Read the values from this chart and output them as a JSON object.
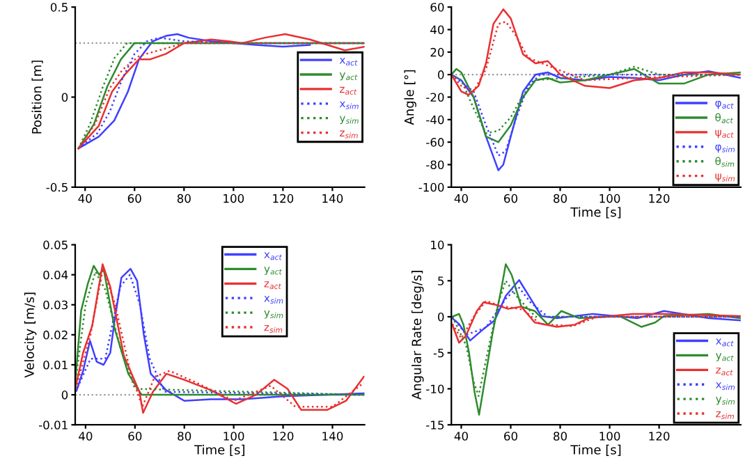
{
  "chart_data": [
    {
      "type": "line",
      "ylabel": "Position [m]",
      "xlim": [
        36,
        153
      ],
      "ylim": [
        -0.5,
        0.5
      ],
      "xticks": [
        40,
        60,
        80,
        100,
        120,
        140
      ],
      "yticks": [
        -0.5,
        0,
        0.5
      ],
      "grid": false,
      "legend": "right",
      "marker": "none",
      "ref_lines": [
        {
          "axis": "y",
          "value": 0.3,
          "color": "#999999",
          "line_style": "dotted"
        }
      ],
      "series": [
        {
          "name": "x$_{act}$",
          "color": "#3f3fff",
          "line_style": "solid",
          "x": [
            37.3,
            45.5,
            51.8,
            57.3,
            61.8,
            67.3,
            72.7,
            77.3,
            81.8,
            90.9,
            109,
            120,
            130.9
          ],
          "values": [
            -0.285,
            -0.22,
            -0.13,
            0.03,
            0.21,
            0.31,
            0.34,
            0.35,
            0.33,
            0.31,
            0.29,
            0.28,
            0.29
          ]
        },
        {
          "name": "y$_{act}$",
          "color": "#2e8b2e",
          "line_style": "solid",
          "x": [
            37.3,
            43.6,
            49,
            54.5,
            60,
            72.7,
            145,
            153
          ],
          "values": [
            -0.285,
            -0.15,
            0.06,
            0.21,
            0.3,
            0.3,
            0.3,
            0.3
          ]
        },
        {
          "name": "z$_{act}$",
          "color": "#e83030",
          "line_style": "solid",
          "x": [
            37.3,
            45.5,
            50.9,
            56.4,
            61.8,
            66.4,
            72.7,
            80,
            90.9,
            98,
            103.6,
            112.7,
            120.9,
            130.9,
            145,
            153
          ],
          "values": [
            -0.285,
            -0.16,
            0.03,
            0.13,
            0.21,
            0.21,
            0.24,
            0.3,
            0.32,
            0.31,
            0.3,
            0.33,
            0.35,
            0.32,
            0.26,
            0.28
          ]
        },
        {
          "name": "x$_{sim}$",
          "color": "#3f3fff",
          "line_style": "dotted",
          "x": [
            37.3,
            45,
            50,
            55,
            60,
            65,
            70,
            80,
            100,
            120,
            153
          ],
          "values": [
            -0.285,
            -0.2,
            -0.08,
            0.1,
            0.24,
            0.31,
            0.33,
            0.31,
            0.3,
            0.3,
            0.3
          ]
        },
        {
          "name": "y$_{sim}$",
          "color": "#2e8b2e",
          "line_style": "dotted",
          "x": [
            37.3,
            42,
            47,
            52,
            57,
            153
          ],
          "values": [
            -0.285,
            -0.15,
            0.05,
            0.22,
            0.3,
            0.3
          ]
        },
        {
          "name": "z$_{sim}$",
          "color": "#e83030",
          "line_style": "dotted",
          "x": [
            37.3,
            44,
            50,
            55,
            62,
            70,
            80,
            153
          ],
          "values": [
            -0.285,
            -0.15,
            0.05,
            0.15,
            0.23,
            0.26,
            0.3,
            0.3
          ]
        }
      ]
    },
    {
      "type": "line",
      "xlabel": "Time [s]",
      "ylabel": "Angle [°]",
      "xlim": [
        36,
        153
      ],
      "ylim": [
        -100,
        60
      ],
      "xticks": [
        40,
        60,
        80,
        100,
        120
      ],
      "yticks": [
        -100,
        -80,
        -60,
        -40,
        -20,
        0,
        20,
        40,
        60
      ],
      "grid": false,
      "legend": "lower right",
      "marker": "none",
      "ref_lines": [
        {
          "axis": "y",
          "value": 0,
          "color": "#999999",
          "line_style": "dotted"
        }
      ],
      "series": [
        {
          "name": "φ$_{act}$",
          "color": "#3f3fff",
          "line_style": "solid",
          "x": [
            36,
            40,
            45,
            50,
            55,
            57,
            60,
            65,
            70,
            75,
            80,
            90,
            100,
            110,
            120,
            130,
            140,
            153
          ],
          "values": [
            0,
            -5,
            -20,
            -55,
            -85,
            -80,
            -55,
            -15,
            0,
            2,
            -3,
            -5,
            -2,
            -3,
            -5,
            0,
            3,
            -3
          ]
        },
        {
          "name": "θ$_{act}$",
          "color": "#2e8b2e",
          "line_style": "solid",
          "x": [
            36,
            38,
            40,
            45,
            50,
            55,
            60,
            65,
            70,
            75,
            80,
            90,
            100,
            110,
            120,
            130,
            140,
            153
          ],
          "values": [
            0,
            5,
            2,
            -20,
            -55,
            -60,
            -45,
            -20,
            -5,
            -3,
            -7,
            -5,
            0,
            5,
            -8,
            -8,
            0,
            2
          ]
        },
        {
          "name": "ψ$_{act}$",
          "color": "#e83030",
          "line_style": "solid",
          "x": [
            36,
            40,
            43,
            47,
            50,
            53,
            57,
            60,
            65,
            70,
            75,
            80,
            90,
            100,
            110,
            120,
            130,
            140,
            153
          ],
          "values": [
            0,
            -15,
            -18,
            -10,
            10,
            45,
            58,
            50,
            18,
            10,
            12,
            0,
            -10,
            -12,
            -5,
            -3,
            2,
            2,
            0
          ]
        },
        {
          "name": "φ$_{sim}$",
          "color": "#3f3fff",
          "line_style": "dotted",
          "x": [
            36,
            45,
            50,
            55,
            58,
            62,
            67,
            72,
            153
          ],
          "values": [
            0,
            -15,
            -45,
            -72,
            -68,
            -40,
            -10,
            0,
            0
          ]
        },
        {
          "name": "θ$_{sim}$",
          "color": "#2e8b2e",
          "line_style": "dotted",
          "x": [
            36,
            40,
            45,
            50,
            55,
            60,
            65,
            70,
            100,
            110,
            120,
            153
          ],
          "values": [
            0,
            -5,
            -30,
            -52,
            -50,
            -38,
            -18,
            -5,
            0,
            7,
            0,
            0
          ]
        },
        {
          "name": "ψ$_{sim}$",
          "color": "#e83030",
          "line_style": "dotted",
          "x": [
            36,
            40,
            45,
            50,
            55,
            58,
            62,
            67,
            75,
            90,
            110,
            153
          ],
          "values": [
            0,
            -10,
            -15,
            5,
            45,
            47,
            35,
            15,
            8,
            -5,
            -3,
            0
          ]
        }
      ]
    },
    {
      "type": "line",
      "xlabel": "Time [s]",
      "ylabel": "Velocity [m/s]",
      "xlim": [
        35.8,
        153
      ],
      "ylim": [
        -0.01,
        0.05
      ],
      "xticks": [
        40,
        60,
        80,
        100,
        120,
        140
      ],
      "yticks": [
        -0.01,
        0,
        0.01,
        0.02,
        0.03,
        0.04,
        0.05
      ],
      "grid": false,
      "legend": "top",
      "marker": "none",
      "ref_lines": [
        {
          "axis": "y",
          "value": 0,
          "color": "#999999",
          "line_style": "dotted"
        }
      ],
      "series": [
        {
          "name": "x$_{act}$",
          "color": "#3f3fff",
          "line_style": "solid",
          "x": [
            36.4,
            39,
            41.8,
            44.5,
            47.3,
            50,
            51.8,
            54.5,
            58.2,
            60.9,
            63.6,
            66.4,
            72.7,
            80,
            90.9,
            103.6,
            120,
            152.7
          ],
          "values": [
            0.0015,
            0.008,
            0.018,
            0.011,
            0.01,
            0.014,
            0.025,
            0.039,
            0.042,
            0.038,
            0.02,
            0.007,
            0.0015,
            -0.002,
            -0.0015,
            -0.0015,
            -0.0005,
            0.0005
          ]
        },
        {
          "name": "y$_{act}$",
          "color": "#2e8b2e",
          "line_style": "solid",
          "x": [
            35.8,
            38.2,
            40.9,
            43.3,
            45.5,
            47.3,
            51.8,
            57.3,
            62.7,
            152.7
          ],
          "values": [
            0.004,
            0.028,
            0.037,
            0.043,
            0.04,
            0.042,
            0.022,
            0.007,
            0,
            0
          ]
        },
        {
          "name": "z$_{act}$",
          "color": "#e83030",
          "line_style": "solid",
          "x": [
            35.8,
            39,
            42.7,
            46.9,
            50,
            55.5,
            61.8,
            63.3,
            67.3,
            72.7,
            80,
            90.9,
            100.9,
            109,
            116.4,
            121.8,
            127.3,
            138,
            145.5,
            152.7
          ],
          "values": [
            0.002,
            0.014,
            0.023,
            0.0435,
            0.036,
            0.013,
            0.001,
            -0.006,
            0.001,
            0.007,
            0.005,
            0.0015,
            -0.003,
            0,
            0.005,
            0.002,
            -0.005,
            -0.005,
            -0.002,
            0.006
          ]
        },
        {
          "name": "x$_{sim}$",
          "color": "#3f3fff",
          "line_style": "dotted",
          "x": [
            36,
            42,
            48,
            54,
            58,
            62,
            66,
            72,
            152.7
          ],
          "values": [
            0.001,
            0.012,
            0.012,
            0.036,
            0.04,
            0.03,
            0.012,
            0.001,
            0
          ]
        },
        {
          "name": "y$_{sim}$",
          "color": "#2e8b2e",
          "line_style": "dotted",
          "x": [
            36,
            40,
            44,
            48,
            54,
            60,
            152.7
          ],
          "values": [
            0.005,
            0.03,
            0.041,
            0.035,
            0.016,
            0.002,
            0
          ]
        },
        {
          "name": "z$_{sim}$",
          "color": "#e83030",
          "line_style": "dotted",
          "x": [
            36,
            42,
            47,
            52,
            58,
            63,
            68,
            74,
            85,
            100,
            115,
            125,
            140,
            152.7
          ],
          "values": [
            0.002,
            0.02,
            0.042,
            0.03,
            0.008,
            -0.004,
            0.006,
            0.008,
            0.004,
            -0.002,
            0.003,
            -0.004,
            -0.004,
            0.004
          ]
        }
      ]
    },
    {
      "type": "line",
      "xlabel": "Time [s]",
      "ylabel": "Angular Rate [deg/s]",
      "xlim": [
        36,
        153
      ],
      "ylim": [
        -15,
        10
      ],
      "xticks": [
        40,
        60,
        80,
        100,
        120
      ],
      "yticks": [
        -15,
        -10,
        -5,
        0,
        5,
        10
      ],
      "grid": false,
      "legend": "lower right",
      "marker": "none",
      "series": [
        {
          "name": "x$_{act}$",
          "color": "#3f3fff",
          "line_style": "solid",
          "x": [
            36.4,
            39.1,
            43.6,
            49,
            53.5,
            58,
            63.4,
            67.9,
            72.4,
            78.7,
            93.2,
            111.2,
            122,
            140,
            153
          ],
          "values": [
            -0.2,
            -1,
            -3.3,
            -1.7,
            -0.5,
            2.9,
            5.1,
            2.6,
            0.1,
            -0.2,
            0.4,
            -0.2,
            0.8,
            -0.2,
            -0.5
          ]
        },
        {
          "name": "y$_{act}$",
          "color": "#2e8b2e",
          "line_style": "solid",
          "x": [
            36.4,
            39.1,
            40.9,
            43.1,
            45.4,
            47.2,
            49,
            52.6,
            56.2,
            58,
            60.4,
            64.3,
            69.7,
            75.1,
            80.5,
            87.7,
            103.9,
            112.9,
            118.4,
            122,
            140,
            153
          ],
          "values": [
            0,
            0.4,
            -1.1,
            -4.9,
            -10.5,
            -13.6,
            -9.9,
            -2.4,
            3.9,
            7.3,
            5.8,
            1.4,
            0.8,
            -1.1,
            0.8,
            -0.2,
            0.1,
            -1.4,
            -0.8,
            0.1,
            0.4,
            -0.2
          ]
        },
        {
          "name": "z$_{act}$",
          "color": "#e83030",
          "line_style": "solid",
          "x": [
            36.4,
            39.1,
            41.8,
            46.3,
            49,
            53.5,
            58.9,
            64.3,
            69.7,
            78.7,
            85.9,
            91.4,
            109.4,
            122,
            153
          ],
          "values": [
            -1.1,
            -3.6,
            -2.7,
            0.8,
            2,
            1.7,
            1.1,
            1.4,
            -0.8,
            -1.4,
            -1.1,
            -0.2,
            0.4,
            0.4,
            0.1
          ]
        },
        {
          "name": "x$_{sim}$",
          "color": "#3f3fff",
          "line_style": "dotted",
          "x": [
            36.4,
            42,
            50,
            58,
            63,
            68,
            75,
            153
          ],
          "values": [
            0,
            -2.5,
            -1.5,
            2.5,
            4.2,
            2,
            0,
            0
          ]
        },
        {
          "name": "y$_{sim}$",
          "color": "#2e8b2e",
          "line_style": "dotted",
          "x": [
            36.4,
            42,
            45,
            47,
            50,
            55,
            58,
            62,
            70,
            153
          ],
          "values": [
            0,
            -4,
            -9,
            -11,
            -6,
            2,
            5,
            3,
            0,
            0
          ]
        },
        {
          "name": "z$_{sim}$",
          "color": "#e83030",
          "line_style": "dotted",
          "x": [
            36.4,
            40,
            45,
            50,
            56,
            65,
            72,
            85,
            95,
            153
          ],
          "values": [
            -1,
            -3,
            0,
            2.2,
            1.5,
            1,
            -1,
            -1.3,
            0,
            0
          ]
        }
      ]
    }
  ]
}
